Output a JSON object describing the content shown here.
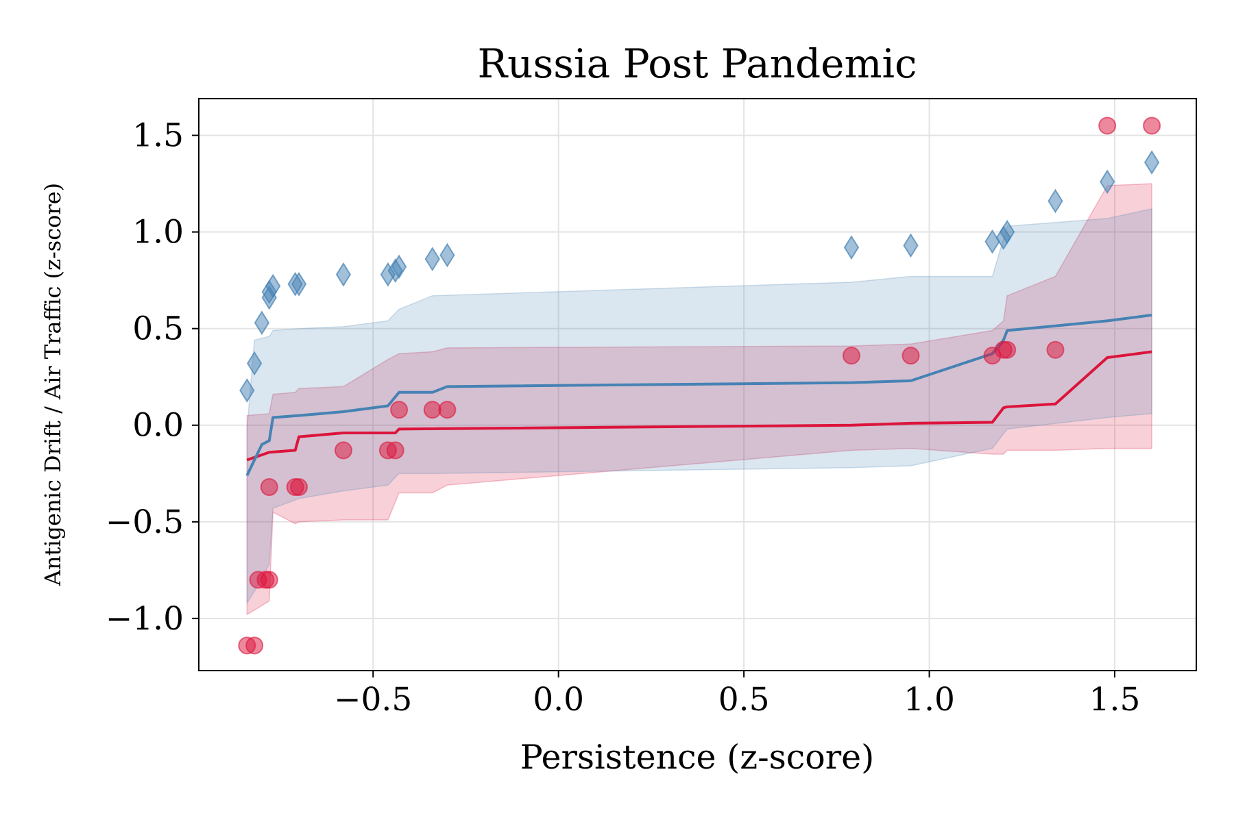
{
  "chart_data": {
    "type": "scatter",
    "title": "Russia Post Pandemic",
    "xlabel": "Persistence (z-score)",
    "ylabel": "Antigenic Drift / Air Traffic (z-score)",
    "xlim": [
      -0.97,
      1.72
    ],
    "ylim": [
      -1.27,
      1.69
    ],
    "xticks": [
      -0.5,
      0.0,
      0.5,
      1.0,
      1.5
    ],
    "xtick_labels": [
      "−0.5",
      "0.0",
      "0.5",
      "1.0",
      "1.5"
    ],
    "yticks": [
      -1.0,
      -0.5,
      0.0,
      0.5,
      1.0,
      1.5
    ],
    "ytick_labels": [
      "−1.0",
      "−0.5",
      "0.0",
      "0.5",
      "1.0",
      "1.5"
    ],
    "grid": true,
    "legend": "none",
    "colors": {
      "red": "#dc143c",
      "blue": "#4682b4"
    },
    "series": [
      {
        "kind": "points",
        "color": "#dc143c",
        "marker": "circle",
        "points": [
          [
            -0.84,
            -1.14
          ],
          [
            -0.82,
            -1.14
          ],
          [
            -0.81,
            -0.8
          ],
          [
            -0.79,
            -0.8
          ],
          [
            -0.78,
            -0.8
          ],
          [
            -0.78,
            -0.32
          ],
          [
            -0.71,
            -0.32
          ],
          [
            -0.7,
            -0.32
          ],
          [
            -0.58,
            -0.13
          ],
          [
            -0.46,
            -0.13
          ],
          [
            -0.44,
            -0.13
          ],
          [
            -0.43,
            0.08
          ],
          [
            -0.34,
            0.08
          ],
          [
            -0.3,
            0.08
          ],
          [
            0.79,
            0.36
          ],
          [
            0.95,
            0.36
          ],
          [
            1.17,
            0.36
          ],
          [
            1.2,
            0.39
          ],
          [
            1.21,
            0.39
          ],
          [
            1.34,
            0.39
          ],
          [
            1.48,
            1.55
          ],
          [
            1.6,
            1.55
          ]
        ]
      },
      {
        "kind": "points",
        "color": "#4682b4",
        "marker": "diamond",
        "points": [
          [
            -0.84,
            0.18
          ],
          [
            -0.82,
            0.32
          ],
          [
            -0.8,
            0.53
          ],
          [
            -0.78,
            0.66
          ],
          [
            -0.78,
            0.69
          ],
          [
            -0.77,
            0.72
          ],
          [
            -0.71,
            0.73
          ],
          [
            -0.7,
            0.73
          ],
          [
            -0.58,
            0.78
          ],
          [
            -0.46,
            0.78
          ],
          [
            -0.44,
            0.8
          ],
          [
            -0.43,
            0.82
          ],
          [
            -0.34,
            0.86
          ],
          [
            -0.3,
            0.88
          ],
          [
            0.79,
            0.92
          ],
          [
            0.95,
            0.93
          ],
          [
            1.17,
            0.95
          ],
          [
            1.2,
            0.97
          ],
          [
            1.21,
            1.0
          ],
          [
            1.34,
            1.16
          ],
          [
            1.48,
            1.26
          ],
          [
            1.6,
            1.36
          ]
        ]
      },
      {
        "kind": "line",
        "color": "#dc143c",
        "points": [
          [
            -0.84,
            -0.18
          ],
          [
            -0.78,
            -0.14
          ],
          [
            -0.71,
            -0.13
          ],
          [
            -0.7,
            -0.06
          ],
          [
            -0.58,
            -0.04
          ],
          [
            -0.44,
            -0.04
          ],
          [
            -0.43,
            -0.02
          ],
          [
            0.79,
            -0.0
          ],
          [
            0.95,
            0.01
          ],
          [
            1.17,
            0.015
          ],
          [
            1.2,
            0.09
          ],
          [
            1.21,
            0.095
          ],
          [
            1.34,
            0.11
          ],
          [
            1.48,
            0.35
          ],
          [
            1.6,
            0.38
          ]
        ]
      },
      {
        "kind": "line",
        "color": "#4682b4",
        "points": [
          [
            -0.84,
            -0.26
          ],
          [
            -0.8,
            -0.1
          ],
          [
            -0.78,
            -0.08
          ],
          [
            -0.77,
            0.04
          ],
          [
            -0.7,
            0.05
          ],
          [
            -0.58,
            0.07
          ],
          [
            -0.46,
            0.1
          ],
          [
            -0.43,
            0.17
          ],
          [
            -0.34,
            0.17
          ],
          [
            -0.3,
            0.2
          ],
          [
            0.79,
            0.22
          ],
          [
            0.95,
            0.23
          ],
          [
            1.17,
            0.37
          ],
          [
            1.2,
            0.44
          ],
          [
            1.21,
            0.49
          ],
          [
            1.48,
            0.54
          ],
          [
            1.6,
            0.57
          ]
        ]
      },
      {
        "kind": "band",
        "color": "#dc143c",
        "points": [
          [
            -0.84,
            0.05,
            -0.98
          ],
          [
            -0.78,
            0.06,
            -0.91
          ],
          [
            -0.77,
            0.16,
            -0.45
          ],
          [
            -0.71,
            0.17,
            -0.51
          ],
          [
            -0.7,
            0.19,
            -0.5
          ],
          [
            -0.58,
            0.2,
            -0.49
          ],
          [
            -0.46,
            0.34,
            -0.49
          ],
          [
            -0.43,
            0.37,
            -0.35
          ],
          [
            -0.34,
            0.38,
            -0.35
          ],
          [
            -0.3,
            0.4,
            -0.31
          ],
          [
            0.79,
            0.41,
            -0.13
          ],
          [
            0.95,
            0.42,
            -0.12
          ],
          [
            1.17,
            0.49,
            -0.15
          ],
          [
            1.2,
            0.54,
            -0.15
          ],
          [
            1.21,
            0.67,
            -0.13
          ],
          [
            1.34,
            0.77,
            -0.13
          ],
          [
            1.48,
            1.24,
            -0.12
          ],
          [
            1.6,
            1.25,
            -0.12
          ]
        ]
      },
      {
        "kind": "band",
        "color": "#4682b4",
        "points": [
          [
            -0.84,
            -0.02,
            -0.92
          ],
          [
            -0.82,
            0.44,
            -0.86
          ],
          [
            -0.78,
            0.46,
            -0.72
          ],
          [
            -0.77,
            0.49,
            -0.43
          ],
          [
            -0.7,
            0.5,
            -0.38
          ],
          [
            -0.58,
            0.51,
            -0.34
          ],
          [
            -0.46,
            0.54,
            -0.31
          ],
          [
            -0.43,
            0.6,
            -0.25
          ],
          [
            -0.34,
            0.67,
            -0.25
          ],
          [
            0.79,
            0.74,
            -0.22
          ],
          [
            0.95,
            0.77,
            -0.21
          ],
          [
            1.17,
            0.77,
            -0.12
          ],
          [
            1.21,
            1.03,
            -0.02
          ],
          [
            1.48,
            1.07,
            0.04
          ],
          [
            1.6,
            1.12,
            0.06
          ]
        ]
      }
    ]
  }
}
